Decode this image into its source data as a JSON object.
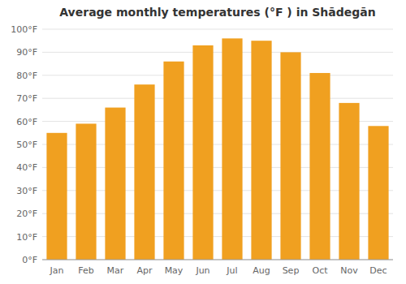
{
  "chart_data": {
    "type": "bar",
    "title": "Average monthly temperatures (°F ) in Shādegān",
    "categories": [
      "Jan",
      "Feb",
      "Mar",
      "Apr",
      "May",
      "Jun",
      "Jul",
      "Aug",
      "Sep",
      "Oct",
      "Nov",
      "Dec"
    ],
    "values": [
      55,
      59,
      66,
      76,
      86,
      93,
      96,
      95,
      90,
      81,
      68,
      58
    ],
    "color": "#F0A020",
    "ylim": [
      0,
      100
    ],
    "yticks": [
      {
        "value": 0,
        "label": "0°F"
      },
      {
        "value": 10,
        "label": "10°F"
      },
      {
        "value": 20,
        "label": "20°F"
      },
      {
        "value": 30,
        "label": "30°F"
      },
      {
        "value": 40,
        "label": "40°F"
      },
      {
        "value": 50,
        "label": "50°F"
      },
      {
        "value": 60,
        "label": "60°F"
      },
      {
        "value": 70,
        "label": "70°F"
      },
      {
        "value": 80,
        "label": "80°F"
      },
      {
        "value": 90,
        "label": "90°F"
      },
      {
        "value": 100,
        "label": "100°F"
      }
    ],
    "grid": true
  }
}
